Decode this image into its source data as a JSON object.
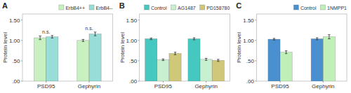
{
  "chart_data": [
    {
      "type": "bar",
      "title": "A",
      "ylabel": "Protein level",
      "categories": [
        "PSD95",
        "Gephyrin"
      ],
      "series": [
        {
          "name": "ErbB4++",
          "color": "#c8f0c0",
          "values": [
            1.065,
            1.0
          ],
          "errors": [
            0.045,
            0.025
          ]
        },
        {
          "name": "ErbB4--",
          "color": "#98ddd8",
          "values": [
            1.09,
            1.16
          ],
          "errors": [
            0.03,
            0.045
          ]
        }
      ],
      "annotations": [
        {
          "x": "PSD95",
          "text": "n.s."
        },
        {
          "x": "Gephyrin",
          "text": "n.s."
        }
      ],
      "ylim": [
        0.0,
        1.65
      ],
      "yticks": [
        {
          "value": 0.0,
          "label": ".00"
        },
        {
          "value": 0.5,
          "label": ".50"
        },
        {
          "value": 1.0,
          "label": "1.00"
        },
        {
          "value": 1.5,
          "label": "1.50"
        }
      ],
      "grid": false,
      "legend": "upper right"
    },
    {
      "type": "bar",
      "title": "B",
      "ylabel": "Protein level",
      "categories": [
        "PSD95",
        "Gephyrin"
      ],
      "series": [
        {
          "name": "Control",
          "color": "#45c8c0",
          "values": [
            1.04,
            1.04
          ],
          "errors": [
            0.02,
            0.025
          ]
        },
        {
          "name": "AG1487",
          "color": "#c8f0d0",
          "values": [
            0.525,
            0.535
          ],
          "errors": [
            0.02,
            0.025
          ]
        },
        {
          "name": "PD158780",
          "color": "#d0c878",
          "values": [
            0.68,
            0.51
          ],
          "errors": [
            0.03,
            0.025
          ]
        }
      ],
      "ylim": [
        0.0,
        1.65
      ],
      "yticks": [
        {
          "value": 0.0,
          "label": ".00"
        },
        {
          "value": 0.5,
          "label": ".50"
        },
        {
          "value": 1.0,
          "label": "1.00"
        },
        {
          "value": 1.5,
          "label": "1.50"
        }
      ],
      "grid": false,
      "legend": "upper right"
    },
    {
      "type": "bar",
      "title": "C",
      "ylabel": "Protein level",
      "categories": [
        "PSD95",
        "Gephyrin"
      ],
      "series": [
        {
          "name": "Control",
          "color": "#4a90d0",
          "values": [
            1.03,
            1.04
          ],
          "errors": [
            0.02,
            0.025
          ]
        },
        {
          "name": "1NMPP1",
          "color": "#c0f0b8",
          "values": [
            0.71,
            1.09
          ],
          "errors": [
            0.035,
            0.05
          ]
        }
      ],
      "ylim": [
        0.0,
        1.65
      ],
      "yticks": [
        {
          "value": 0.0,
          "label": ".00"
        },
        {
          "value": 0.5,
          "label": ".50"
        },
        {
          "value": 1.0,
          "label": "1.00"
        },
        {
          "value": 1.5,
          "label": "1.50"
        }
      ],
      "grid": false,
      "legend": "upper right"
    }
  ]
}
